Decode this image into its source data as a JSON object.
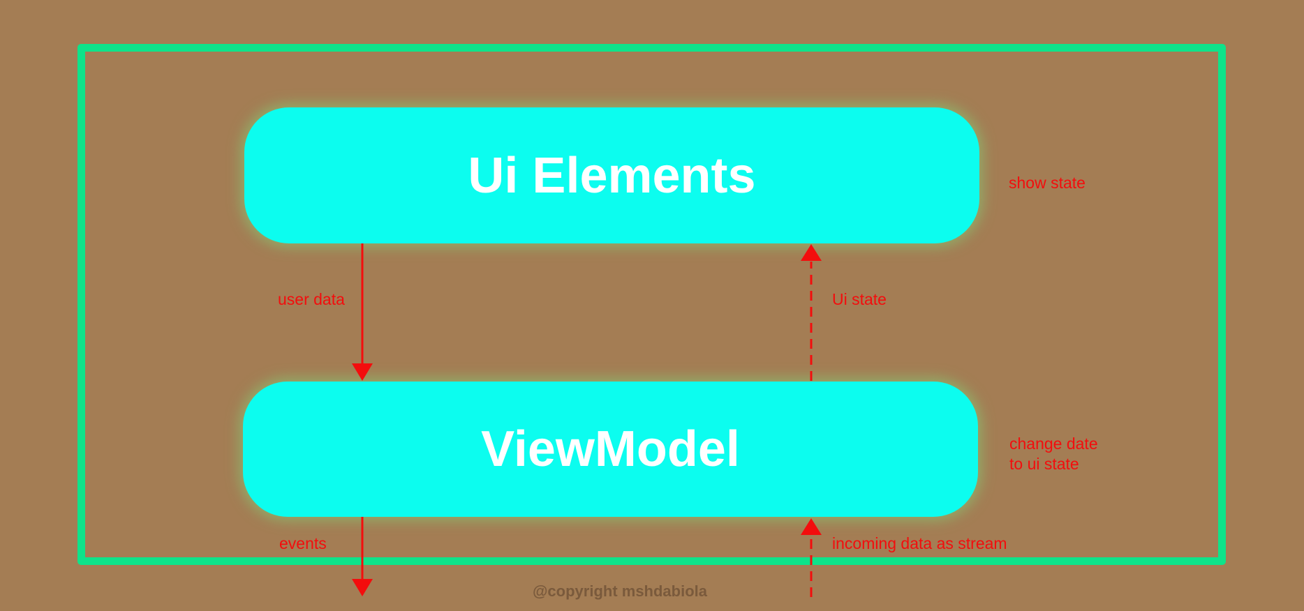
{
  "boxes": {
    "ui_elements": "Ui Elements",
    "view_model": "ViewModel"
  },
  "labels": {
    "show_state": "show state",
    "user_data": "user data",
    "ui_state": "Ui state",
    "change_line1": "change date",
    "change_line2": "to ui state",
    "events": "events",
    "incoming": "incoming data as stream"
  },
  "copyright": "@copyright mshdabiola",
  "colors": {
    "background": "#a47d54",
    "frame": "#0ee38a",
    "box_fill": "#0cfdef",
    "box_text": "#ffffff",
    "arrow": "#f30d0d",
    "label": "#f30d0d",
    "copyright": "#7a5a3c"
  },
  "icons": {
    "user_data_arrow": "solid-down-arrow-icon",
    "ui_state_arrow": "dashed-up-arrow-icon",
    "events_arrow": "solid-down-arrow-icon",
    "incoming_arrow": "dashed-up-arrow-icon"
  }
}
